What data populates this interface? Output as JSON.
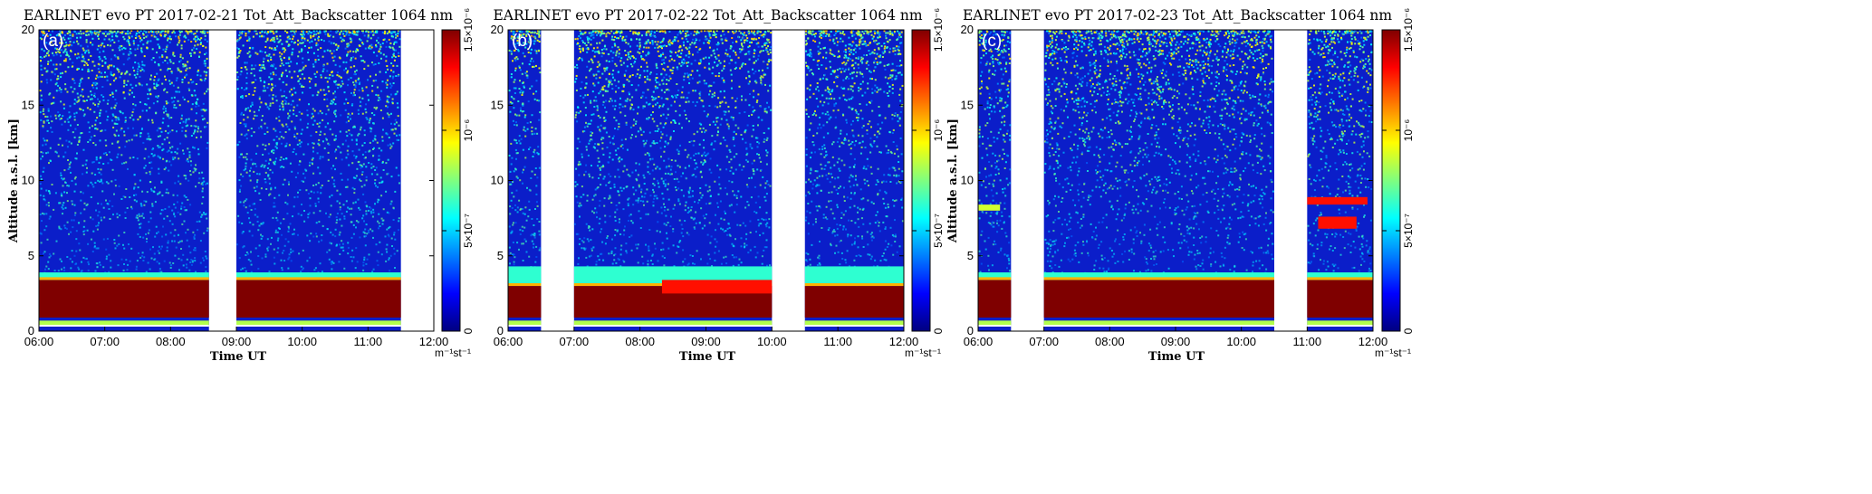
{
  "chart_data": [
    {
      "type": "heatmap",
      "title": "EARLINET evo PT 2017-02-21 Tot_Att_Backscatter 1064 nm",
      "panel_label": "(a)",
      "xlabel": "Time UT",
      "ylabel": "Altitude a.s.l. [km]",
      "xlim": [
        "06:00",
        "12:00"
      ],
      "x_ticks": [
        "06:00",
        "07:00",
        "08:00",
        "09:00",
        "10:00",
        "11:00",
        "12:00"
      ],
      "ylim": [
        0,
        20
      ],
      "y_ticks": [
        "0",
        "5",
        "10",
        "15",
        "20"
      ],
      "colorbar": {
        "ticks": [
          "0",
          "5×10⁻⁷",
          "10⁻⁶",
          "1.5×10⁻⁶"
        ],
        "values": [
          0,
          5e-07,
          1e-06,
          1.5e-06
        ],
        "unit": "m⁻¹st⁻¹",
        "colors": [
          "#00007f",
          "#0000ff",
          "#007fff",
          "#00ffff",
          "#7fff7f",
          "#ffff00",
          "#ff7f00",
          "#ff0000",
          "#7f0000"
        ]
      },
      "data_coverage": [
        [
          "06:00",
          "08:35"
        ],
        [
          "09:00",
          "11:30"
        ]
      ],
      "structures": [
        {
          "name": "aerosol layer",
          "from_km": 0.9,
          "to_km": 3.4,
          "level": "saturated",
          "start": "06:00",
          "end": "11:30"
        },
        {
          "name": "layer top",
          "from_km": 3.4,
          "to_km": 3.9,
          "level": "medium",
          "start": "06:00",
          "end": "11:30"
        },
        {
          "name": "surface band",
          "from_km": 0.3,
          "to_km": 0.7,
          "level": "low",
          "start": "06:00",
          "end": "11:30"
        }
      ]
    },
    {
      "type": "heatmap",
      "title": "EARLINET evo PT 2017-02-22 Tot_Att_Backscatter 1064 nm",
      "panel_label": "(b)",
      "xlabel": "Time UT",
      "ylabel": "",
      "xlim": [
        "06:00",
        "12:00"
      ],
      "x_ticks": [
        "06:00",
        "07:00",
        "08:00",
        "09:00",
        "10:00",
        "11:00",
        "12:00"
      ],
      "ylim": [
        0,
        20
      ],
      "y_ticks": [
        "0",
        "5",
        "10",
        "15",
        "20"
      ],
      "colorbar": {
        "ticks": [
          "0",
          "5×10⁻⁷",
          "10⁻⁶",
          "1.5×10⁻⁶"
        ],
        "values": [
          0,
          5e-07,
          1e-06,
          1.5e-06
        ],
        "unit": "m⁻¹st⁻¹",
        "colors": [
          "#00007f",
          "#0000ff",
          "#007fff",
          "#00ffff",
          "#7fff7f",
          "#ffff00",
          "#ff7f00",
          "#ff0000",
          "#7f0000"
        ]
      },
      "data_coverage": [
        [
          "06:00",
          "06:30"
        ],
        [
          "07:00",
          "10:00"
        ],
        [
          "10:30",
          "12:00"
        ]
      ],
      "structures": [
        {
          "name": "aerosol layer",
          "from_km": 0.9,
          "to_km": 3.0,
          "level": "saturated",
          "start": "06:00",
          "end": "12:00"
        },
        {
          "name": "layer top",
          "from_km": 3.0,
          "to_km": 4.3,
          "level": "medium",
          "start": "06:00",
          "end": "12:00"
        },
        {
          "name": "orange patch",
          "from_km": 2.5,
          "to_km": 3.4,
          "level": "high",
          "start": "08:20",
          "end": "10:00"
        },
        {
          "name": "surface band",
          "from_km": 0.3,
          "to_km": 0.7,
          "level": "low",
          "start": "06:00",
          "end": "12:00"
        }
      ]
    },
    {
      "type": "heatmap",
      "title": "EARLINET evo PT 2017-02-23 Tot_Att_Backscatter 1064 nm",
      "panel_label": "(c)",
      "xlabel": "Time UT",
      "ylabel": "Altitude a.s.l. [km]",
      "xlim": [
        "06:00",
        "12:00"
      ],
      "x_ticks": [
        "06:00",
        "07:00",
        "08:00",
        "09:00",
        "10:00",
        "11:00",
        "12:00"
      ],
      "ylim": [
        0,
        20
      ],
      "y_ticks": [
        "0",
        "5",
        "10",
        "15",
        "20"
      ],
      "colorbar": {
        "ticks": [
          "0",
          "5×10⁻⁷",
          "10⁻⁶",
          "1.5×10⁻⁶"
        ],
        "values": [
          0,
          5e-07,
          1e-06,
          1.5e-06
        ],
        "unit": "m⁻¹st⁻¹",
        "colors": [
          "#00007f",
          "#0000ff",
          "#007fff",
          "#00ffff",
          "#7fff7f",
          "#ffff00",
          "#ff7f00",
          "#ff0000",
          "#7f0000"
        ]
      },
      "data_coverage": [
        [
          "06:00",
          "06:30"
        ],
        [
          "07:00",
          "10:30"
        ],
        [
          "11:00",
          "12:00"
        ]
      ],
      "structures": [
        {
          "name": "aerosol layer",
          "from_km": 0.9,
          "to_km": 3.4,
          "level": "saturated",
          "start": "06:00",
          "end": "12:00"
        },
        {
          "name": "layer top",
          "from_km": 3.4,
          "to_km": 3.9,
          "level": "medium",
          "start": "06:00",
          "end": "12:00"
        },
        {
          "name": "cirrus",
          "from_km": 8.0,
          "to_km": 8.4,
          "level": "medium",
          "start": "06:00",
          "end": "06:20"
        },
        {
          "name": "cirrus",
          "from_km": 8.4,
          "to_km": 8.9,
          "level": "high",
          "start": "11:00",
          "end": "11:55"
        },
        {
          "name": "cirrus",
          "from_km": 6.8,
          "to_km": 7.6,
          "level": "high",
          "start": "11:10",
          "end": "11:45"
        },
        {
          "name": "surface band",
          "from_km": 0.3,
          "to_km": 0.7,
          "level": "low",
          "start": "06:00",
          "end": "12:00"
        }
      ]
    }
  ]
}
